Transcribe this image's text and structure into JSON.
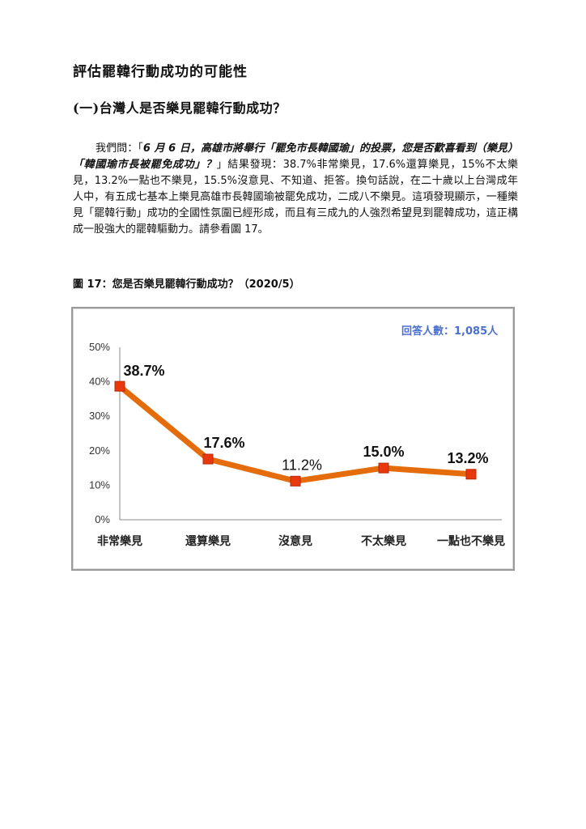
{
  "document": {
    "heading1": "評估罷韓行動成功的可能性",
    "heading2": "(一)台灣人是否樂見罷韓行動成功？",
    "paragraph": {
      "intro": "我們問：「",
      "question": "6 月 6 日，高雄市將舉行「罷免市長韓國瑜」的投票，您是否歡喜看到（樂見）「韓國瑜市長被罷免成功」？",
      "body": "」結果發現：38.7%非常樂見，17.6%還算樂見，15%不太樂見，13.2%一點也不樂見，15.5%沒意見、不知道、拒答。換句話說，在二十歲以上台灣成年人中，有五成七基本上樂見高雄市長韓國瑜被罷免成功，二成八不樂見。這項發現顯示，一種樂見「罷韓行動」成功的全國性氛圍已經形成，而且有三成九的人強烈希望見到罷韓成功，這正構成一股強大的罷韓驅動力。請參看圖 17。"
    },
    "figure_caption": "圖 17：您是否樂見罷韓行動成功？（2020/5）",
    "respondents": "回答人數：1,085人"
  },
  "colors": {
    "line": "#e46c0a",
    "marker": "#e8380d",
    "axis_text": "#333333",
    "respondents": "#4a6fd0"
  },
  "chart_data": {
    "type": "line",
    "title": "",
    "xlabel": "",
    "ylabel": "",
    "categories": [
      "非常樂見",
      "還算樂見",
      "沒意見",
      "不太樂見",
      "一點也不樂見"
    ],
    "series": [
      {
        "values": [
          38.7,
          17.6,
          11.2,
          15.0,
          13.2
        ]
      }
    ],
    "data_labels": [
      "38.7%",
      "17.6%",
      "11.2%",
      "15.0%",
      "13.2%"
    ],
    "yticks": [
      "0%",
      "10%",
      "20%",
      "30%",
      "40%",
      "50%"
    ],
    "ylim": [
      0,
      50
    ],
    "grid": false,
    "legend": "none"
  }
}
